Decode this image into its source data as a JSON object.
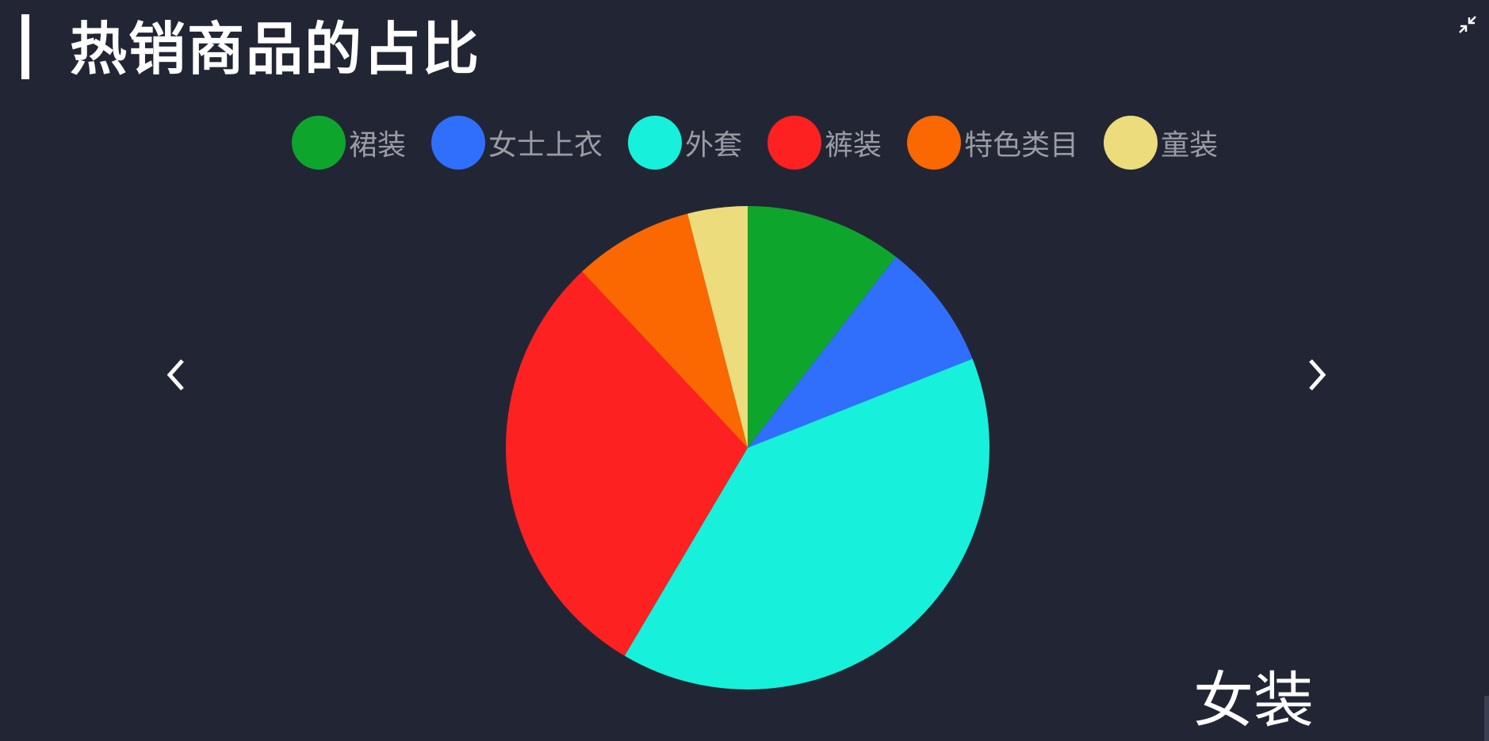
{
  "header": {
    "title": "热销商品的占比"
  },
  "category_label": "女装",
  "colors": {
    "background": "#222634",
    "title": "#ffffff",
    "legend_text": "#9a9ca4"
  },
  "icons": {
    "collapse": "collapse-icon",
    "prev": "chevron-left-icon",
    "next": "chevron-right-icon"
  },
  "chart_data": {
    "type": "pie",
    "title": "热销商品的占比",
    "legend_position": "top",
    "series": [
      {
        "name": "裙装",
        "value": 10.5,
        "color": "#0ea52c"
      },
      {
        "name": "女士上衣",
        "value": 8.5,
        "color": "#2f6ffb"
      },
      {
        "name": "外套",
        "value": 39.5,
        "color": "#17f0da"
      },
      {
        "name": "裤装",
        "value": 29.5,
        "color": "#fe2121"
      },
      {
        "name": "特色类目",
        "value": 8.0,
        "color": "#fb6700"
      },
      {
        "name": "童装",
        "value": 4.0,
        "color": "#ecdc7b"
      }
    ]
  }
}
